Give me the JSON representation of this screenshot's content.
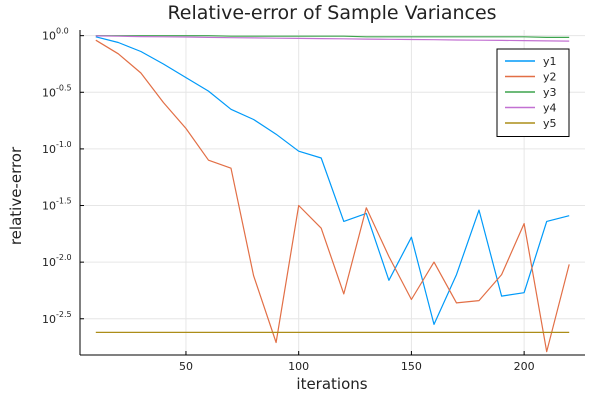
{
  "chart_data": {
    "type": "line",
    "title": "Relative-error of Sample Variances",
    "xlabel": "iterations",
    "ylabel": "relative-error",
    "x": [
      10,
      20,
      30,
      40,
      50,
      60,
      70,
      80,
      90,
      100,
      110,
      120,
      130,
      140,
      150,
      160,
      170,
      180,
      190,
      200,
      210,
      220
    ],
    "xlim": [
      3,
      227
    ],
    "ylim": [
      -2.82,
      0.05
    ],
    "yscale": "log10",
    "x_ticks": [
      50,
      100,
      150,
      200
    ],
    "x_tick_labels": [
      "50",
      "100",
      "150",
      "200"
    ],
    "y_ticks": [
      0.0,
      -0.5,
      -1.0,
      -1.5,
      -2.0,
      -2.5
    ],
    "y_tick_bases": [
      "10",
      "10",
      "10",
      "10",
      "10",
      "10"
    ],
    "y_tick_exponents": [
      "0.0",
      "-0.5",
      "-1.0",
      "-1.5",
      "-2.0",
      "-2.5"
    ],
    "grid": true,
    "legend_position": "top-right",
    "series": [
      {
        "name": "y1",
        "color": "#009af9",
        "values": [
          -0.01,
          -0.06,
          -0.14,
          -0.25,
          -0.37,
          -0.49,
          -0.65,
          -0.74,
          -0.87,
          -1.02,
          -1.08,
          -1.64,
          -1.57,
          -2.16,
          -1.78,
          -2.55,
          -2.11,
          -1.54,
          -2.3,
          -2.27,
          -1.64,
          -1.59
        ]
      },
      {
        "name": "y2",
        "color": "#e26f46",
        "values": [
          -0.04,
          -0.16,
          -0.33,
          -0.59,
          -0.82,
          -1.1,
          -1.17,
          -2.12,
          -2.71,
          -1.5,
          -1.7,
          -2.28,
          -1.52,
          -1.95,
          -2.33,
          -2.0,
          -2.36,
          -2.34,
          -2.11,
          -1.66,
          -2.79,
          -2.02
        ]
      },
      {
        "name": "y3",
        "color": "#3da44d",
        "values": [
          0.0,
          0.0,
          0.0,
          0.0,
          0.0,
          0.0,
          -0.005,
          -0.005,
          -0.005,
          -0.005,
          -0.005,
          -0.005,
          -0.01,
          -0.01,
          -0.01,
          -0.01,
          -0.01,
          -0.01,
          -0.01,
          -0.01,
          -0.015,
          -0.015
        ]
      },
      {
        "name": "y4",
        "color": "#c271d2",
        "values": [
          -0.002,
          -0.005,
          -0.008,
          -0.01,
          -0.012,
          -0.015,
          -0.018,
          -0.02,
          -0.022,
          -0.024,
          -0.026,
          -0.028,
          -0.03,
          -0.032,
          -0.034,
          -0.036,
          -0.038,
          -0.04,
          -0.042,
          -0.044,
          -0.046,
          -0.048
        ]
      },
      {
        "name": "y5",
        "color": "#ac8d18",
        "values": [
          -2.62,
          -2.62,
          -2.62,
          -2.62,
          -2.62,
          -2.62,
          -2.62,
          -2.62,
          -2.62,
          -2.62,
          -2.62,
          -2.62,
          -2.62,
          -2.62,
          -2.62,
          -2.62,
          -2.62,
          -2.62,
          -2.62,
          -2.62,
          -2.62,
          -2.62
        ]
      }
    ]
  }
}
